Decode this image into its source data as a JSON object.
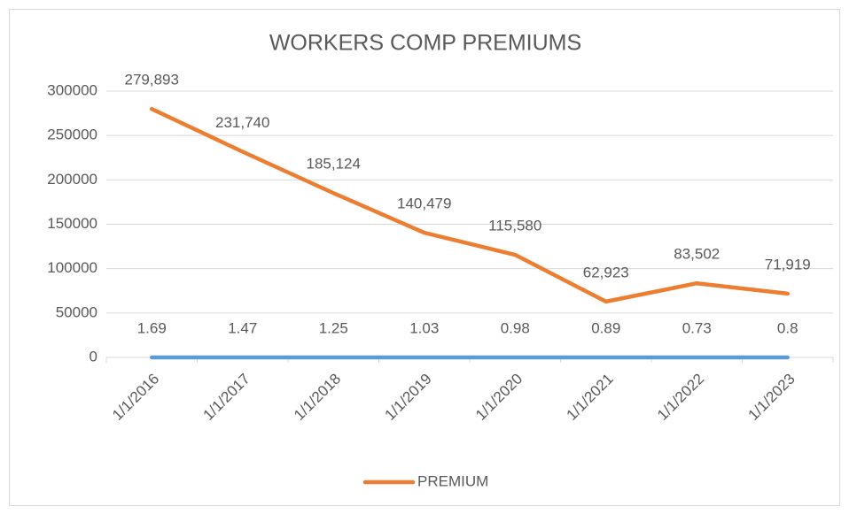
{
  "chart_data": {
    "type": "line",
    "title": "WORKERS COMP PREMIUMS",
    "categories": [
      "1/1/2016",
      "1/1/2017",
      "1/1/2018",
      "1/1/2019",
      "1/1/2020",
      "1/1/2021",
      "1/1/2022",
      "1/1/2023"
    ],
    "series": [
      {
        "name": "PREMIUM",
        "color": "#ed7d31",
        "values": [
          279893,
          231740,
          185124,
          140479,
          115580,
          62923,
          83502,
          71919
        ],
        "value_labels": [
          "279,893",
          "231,740",
          "185,124",
          "140,479",
          "115,580",
          "62,923",
          "83,502",
          "71,919"
        ]
      },
      {
        "color": "#5b9bd5",
        "values": [
          1.69,
          1.47,
          1.25,
          1.03,
          0.98,
          0.89,
          0.73,
          0.8
        ]
      }
    ],
    "ylim": [
      0,
      300000
    ],
    "yticks": [
      0,
      50000,
      100000,
      150000,
      200000,
      250000,
      300000
    ],
    "grid": true,
    "legend": "bottom"
  }
}
